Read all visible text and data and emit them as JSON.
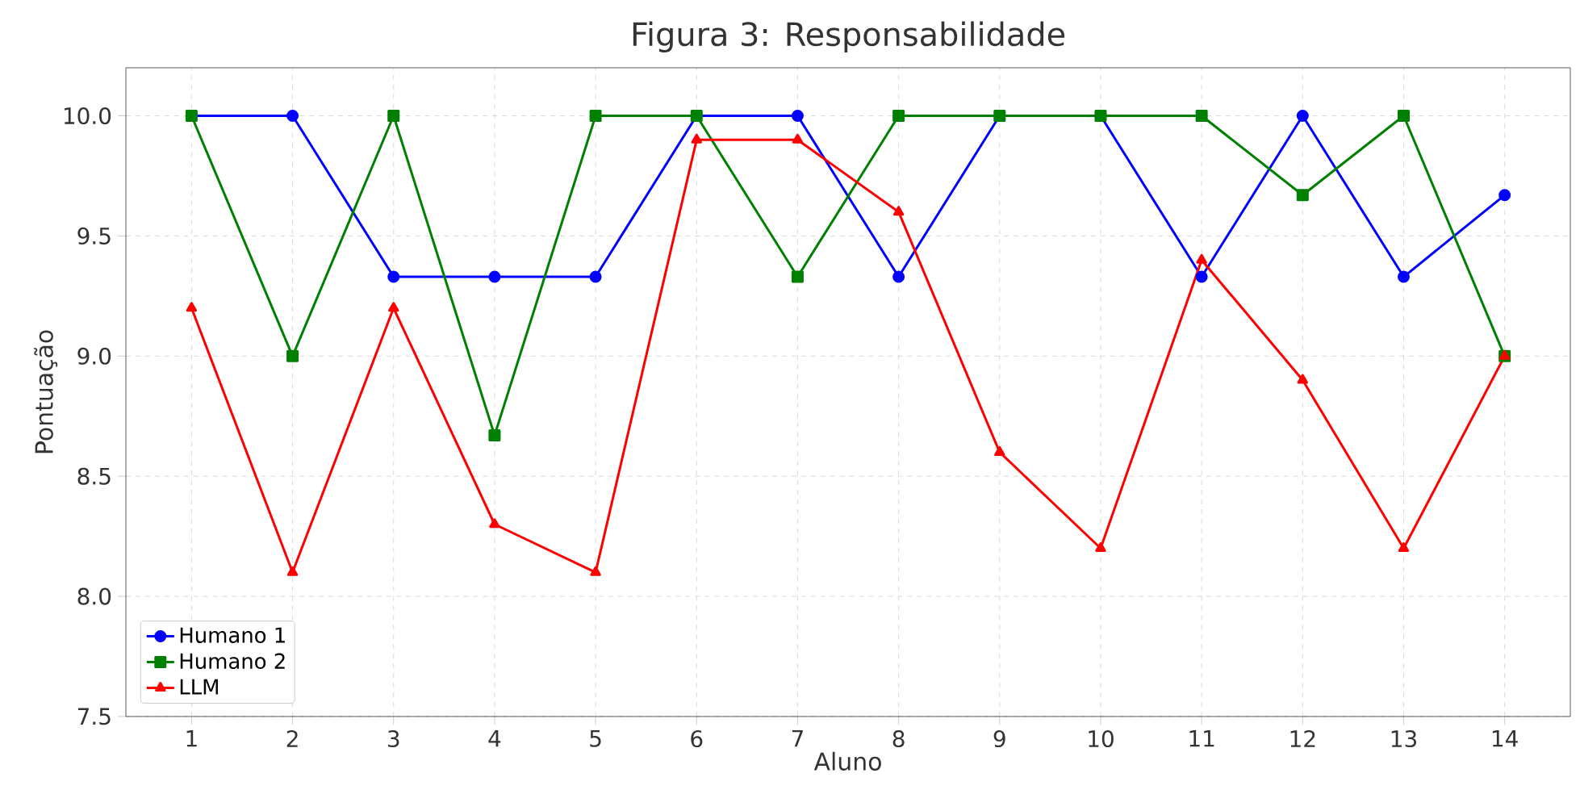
{
  "chart_data": {
    "type": "line",
    "title": "Figura 3: Responsabilidade",
    "xlabel": "Aluno",
    "ylabel": "Pontuação",
    "categories": [
      "1",
      "2",
      "3",
      "4",
      "5",
      "6",
      "7",
      "8",
      "9",
      "10",
      "11",
      "12",
      "13",
      "14"
    ],
    "series": [
      {
        "name": "Humano 1",
        "color": "#0000ff",
        "marker": "circle",
        "values": [
          10,
          10,
          9.33,
          9.33,
          9.33,
          10,
          10,
          9.33,
          10,
          10,
          9.33,
          10,
          9.33,
          9.67
        ]
      },
      {
        "name": "Humano 2",
        "color": "#008000",
        "marker": "square",
        "values": [
          10,
          9,
          10,
          8.67,
          10,
          10,
          9.33,
          10,
          10,
          10,
          10,
          9.67,
          10,
          9
        ]
      },
      {
        "name": "LLM",
        "color": "#ff0000",
        "marker": "triangle",
        "values": [
          9.2,
          8.1,
          9.2,
          8.3,
          8.1,
          9.9,
          9.9,
          9.6,
          8.6,
          8.2,
          9.4,
          8.9,
          8.2,
          9.0
        ]
      }
    ],
    "ylim": [
      7.5,
      10.2
    ],
    "yticks": [
      {
        "value": 7.5,
        "label": "7.5"
      },
      {
        "value": 8,
        "label": "8.0"
      },
      {
        "value": 8.5,
        "label": "8.5"
      },
      {
        "value": 9,
        "label": "9.0"
      },
      {
        "value": 9.5,
        "label": "9.5"
      },
      {
        "value": 10,
        "label": "10.0"
      }
    ],
    "grid": true,
    "legend": "bottom left",
    "line_style": "solid"
  }
}
